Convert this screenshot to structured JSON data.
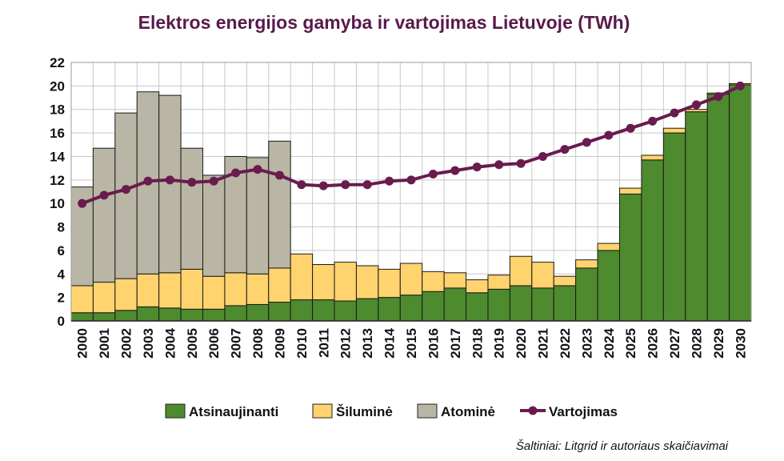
{
  "chart_data": {
    "type": "bar",
    "stacked": true,
    "title": "Elektros energijos gamyba ir vartojimas Lietuvoje (TWh)",
    "xlabel": "",
    "ylabel": "",
    "ylim": [
      0,
      22
    ],
    "yticks": [
      0,
      2,
      4,
      6,
      8,
      10,
      12,
      14,
      16,
      18,
      20,
      22
    ],
    "grid": true,
    "legend_position": "bottom",
    "categories": [
      "2000",
      "2001",
      "2002",
      "2003",
      "2004",
      "2005",
      "2006",
      "2007",
      "2008",
      "2009",
      "2010",
      "2011",
      "2012",
      "2013",
      "2014",
      "2015",
      "2016",
      "2017",
      "2018",
      "2019",
      "2020",
      "2021",
      "2022",
      "2023",
      "2024",
      "2025",
      "2026",
      "2027",
      "2028",
      "2029",
      "2030"
    ],
    "series": [
      {
        "name": "Atsinaujinanti",
        "kind": "bar",
        "color": "#4e8a2e",
        "values": [
          0.7,
          0.7,
          0.9,
          1.2,
          1.1,
          1.0,
          1.0,
          1.3,
          1.4,
          1.6,
          1.8,
          1.8,
          1.7,
          1.9,
          2.0,
          2.2,
          2.5,
          2.8,
          2.4,
          2.7,
          3.0,
          2.8,
          3.0,
          4.5,
          6.0,
          10.8,
          13.7,
          16.0,
          17.8,
          19.3,
          20.1
        ]
      },
      {
        "name": "Šiluminė",
        "kind": "bar",
        "color": "#ffd36e",
        "values": [
          2.3,
          2.6,
          2.7,
          2.8,
          3.0,
          3.4,
          2.8,
          2.8,
          2.6,
          2.9,
          3.9,
          3.0,
          3.3,
          2.8,
          2.4,
          2.7,
          1.7,
          1.3,
          1.1,
          1.2,
          2.5,
          2.2,
          0.8,
          0.7,
          0.6,
          0.5,
          0.4,
          0.4,
          0.2,
          0.1,
          0.1
        ]
      },
      {
        "name": "Atominė",
        "kind": "bar",
        "color": "#b9b6a6",
        "values": [
          8.4,
          11.4,
          14.1,
          15.5,
          15.1,
          10.3,
          8.6,
          9.9,
          9.9,
          10.8,
          0,
          0,
          0,
          0,
          0,
          0,
          0,
          0,
          0,
          0,
          0,
          0,
          0,
          0,
          0,
          0,
          0,
          0,
          0,
          0,
          0
        ]
      },
      {
        "name": "Vartojimas",
        "kind": "line",
        "color": "#6a1b4d",
        "values": [
          10.0,
          10.7,
          11.2,
          11.9,
          12.0,
          11.8,
          11.9,
          12.6,
          12.9,
          12.4,
          11.6,
          11.5,
          11.6,
          11.6,
          11.9,
          12.0,
          12.5,
          12.8,
          13.1,
          13.3,
          13.4,
          14.0,
          14.6,
          15.2,
          15.8,
          16.4,
          17.0,
          17.7,
          18.4,
          19.1,
          20.0
        ]
      }
    ],
    "source": "Šaltiniai: Litgrid ir autoriaus skaičiavimai"
  }
}
